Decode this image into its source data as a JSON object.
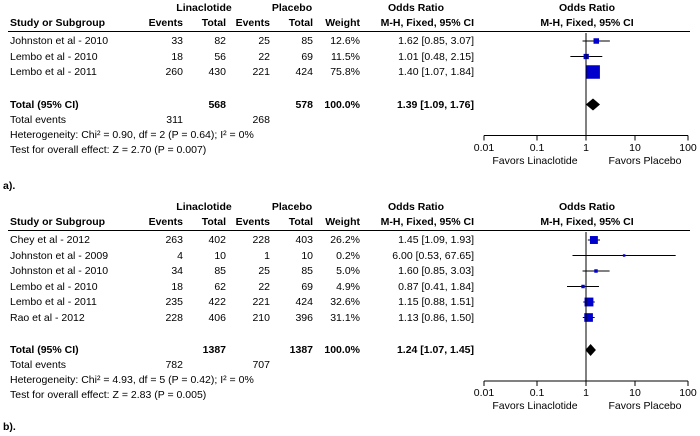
{
  "panels": [
    {
      "id": "a",
      "headers": {
        "group1": "Linaclotide",
        "group2": "Placebo",
        "or_title": "Odds Ratio",
        "plot_title": "Odds Ratio",
        "study": "Study or Subgroup",
        "events1": "Events",
        "total1": "Total",
        "events2": "Events",
        "total2": "Total",
        "weight": "Weight",
        "method": "M-H, Fixed, 95% CI",
        "plot_method": "M-H, Fixed, 95% CI"
      },
      "total_label": "Total (95% CI)",
      "total1": "568",
      "total2": "578",
      "total_weight": "100.0%",
      "total_ci": "1.39 [1.09, 1.76]",
      "total_events_label": "Total events",
      "total_events1": "311",
      "total_events2": "268",
      "heterogeneity": "Heterogeneity: Chi² = 0.90, df = 2 (P = 0.64); I² = 0%",
      "overall": "Test for overall effect: Z = 2.70 (P = 0.007)",
      "favors_left": "Favors Linaclotide",
      "favors_right": "Favors Placebo",
      "panel_label": "a)."
    },
    {
      "id": "b",
      "headers": {
        "group1": "Linaclotide",
        "group2": "Placebo",
        "or_title": "Odds Ratio",
        "plot_title": "Odds Ratio",
        "study": "Study or Subgroup",
        "events1": "Events",
        "total1": "Total",
        "events2": "Events",
        "total2": "Total",
        "weight": "Weight",
        "method": "M-H, Fixed, 95% CI",
        "plot_method": "M-H, Fixed, 95% CI"
      },
      "total_label": "Total (95% CI)",
      "total1": "1387",
      "total2": "1387",
      "total_weight": "100.0%",
      "total_ci": "1.24 [1.07, 1.45]",
      "total_events_label": "Total events",
      "total_events1": "782",
      "total_events2": "707",
      "heterogeneity": "Heterogeneity: Chi² = 4.93, df = 5 (P = 0.42); I² = 0%",
      "overall": "Test for overall effect: Z = 2.83 (P = 0.005)",
      "favors_left": "Favors Linaclotide",
      "favors_right": "Favors Placebo",
      "panel_label": "b)."
    }
  ],
  "chart_data": [
    {
      "type": "forest",
      "axis_scale": "log",
      "x_ticks": [
        "0.01",
        "0.1",
        "1",
        "10",
        "100"
      ],
      "x_tick_values": [
        0.01,
        0.1,
        1,
        10,
        100
      ],
      "xlim": [
        0.01,
        100
      ],
      "studies": [
        {
          "study": "Johnston et al - 2010",
          "events1": "33",
          "total1": "82",
          "events2": "25",
          "total2": "85",
          "weight": "12.6%",
          "ci": "1.62 [0.85, 3.07]",
          "or": 1.62,
          "lo": 0.85,
          "hi": 3.07,
          "w": 12.6
        },
        {
          "study": "Lembo et al - 2010",
          "events1": "18",
          "total1": "56",
          "events2": "22",
          "total2": "69",
          "weight": "11.5%",
          "ci": "1.01 [0.48, 2.15]",
          "or": 1.01,
          "lo": 0.48,
          "hi": 2.15,
          "w": 11.5
        },
        {
          "study": "Lembo et al - 2011",
          "events1": "260",
          "total1": "430",
          "events2": "221",
          "total2": "424",
          "weight": "75.8%",
          "ci": "1.40 [1.07, 1.84]",
          "or": 1.4,
          "lo": 1.07,
          "hi": 1.84,
          "w": 75.8
        }
      ],
      "pooled": {
        "or": 1.39,
        "lo": 1.09,
        "hi": 1.76
      }
    },
    {
      "type": "forest",
      "axis_scale": "log",
      "x_ticks": [
        "0.01",
        "0.1",
        "1",
        "10",
        "100"
      ],
      "x_tick_values": [
        0.01,
        0.1,
        1,
        10,
        100
      ],
      "xlim": [
        0.01,
        100
      ],
      "studies": [
        {
          "study": "Chey et al - 2012",
          "events1": "263",
          "total1": "402",
          "events2": "228",
          "total2": "403",
          "weight": "26.2%",
          "ci": "1.45 [1.09, 1.93]",
          "or": 1.45,
          "lo": 1.09,
          "hi": 1.93,
          "w": 26.2
        },
        {
          "study": "Johnston et al - 2009",
          "events1": "4",
          "total1": "10",
          "events2": "1",
          "total2": "10",
          "weight": "0.2%",
          "ci": "6.00 [0.53, 67.65]",
          "or": 6.0,
          "lo": 0.53,
          "hi": 67.65,
          "w": 0.2
        },
        {
          "study": "Johnston et al - 2010",
          "events1": "34",
          "total1": "85",
          "events2": "25",
          "total2": "85",
          "weight": "5.0%",
          "ci": "1.60 [0.85, 3.03]",
          "or": 1.6,
          "lo": 0.85,
          "hi": 3.03,
          "w": 5.0
        },
        {
          "study": "Lembo et al - 2010",
          "events1": "18",
          "total1": "62",
          "events2": "22",
          "total2": "69",
          "weight": "4.9%",
          "ci": "0.87 [0.41, 1.84]",
          "or": 0.87,
          "lo": 0.41,
          "hi": 1.84,
          "w": 4.9
        },
        {
          "study": "Lembo et al - 2011",
          "events1": "235",
          "total1": "422",
          "events2": "221",
          "total2": "424",
          "weight": "32.6%",
          "ci": "1.15 [0.88, 1.51]",
          "or": 1.15,
          "lo": 0.88,
          "hi": 1.51,
          "w": 32.6
        },
        {
          "study": "Rao et al - 2012",
          "events1": "228",
          "total1": "406",
          "events2": "210",
          "total2": "396",
          "weight": "31.1%",
          "ci": "1.13 [0.86, 1.50]",
          "or": 1.13,
          "lo": 0.86,
          "hi": 1.5,
          "w": 31.1
        }
      ],
      "pooled": {
        "or": 1.24,
        "lo": 1.07,
        "hi": 1.45
      }
    }
  ]
}
